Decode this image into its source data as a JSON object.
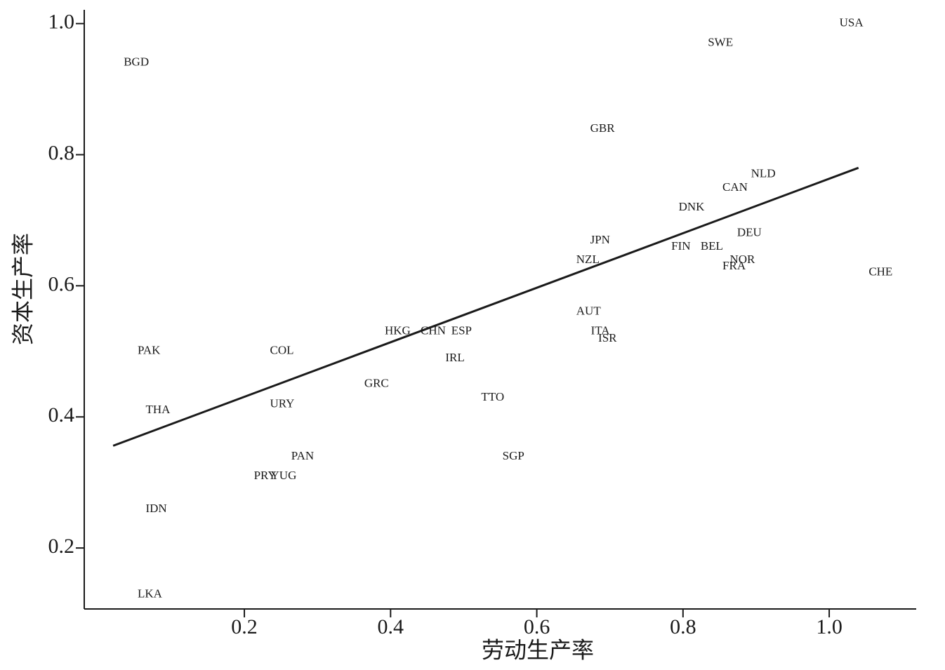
{
  "chart_data": {
    "type": "scatter",
    "x_label": "劳动生产率",
    "y_label": "资本生产率",
    "labels": [
      "BGD",
      "USA",
      "SWE",
      "GBR",
      "NLD",
      "CAN",
      "DNK",
      "DEU",
      "JPN",
      "FIN",
      "BEL",
      "NOR",
      "NZL",
      "FRA",
      "CHE",
      "AUT",
      "ITA",
      "ISR",
      "HKG",
      "CHN",
      "ESP",
      "IRL",
      "PAK",
      "COL",
      "GRC",
      "TTO",
      "URY",
      "THA",
      "PAN",
      "SGP",
      "PRY",
      "YUG",
      "IDN",
      "LKA"
    ],
    "x": [
      0.035,
      1.014,
      0.834,
      0.673,
      0.893,
      0.854,
      0.794,
      0.874,
      0.673,
      0.784,
      0.824,
      0.864,
      0.654,
      0.854,
      1.054,
      0.654,
      0.674,
      0.684,
      0.392,
      0.441,
      0.483,
      0.475,
      0.054,
      0.235,
      0.364,
      0.524,
      0.235,
      0.065,
      0.264,
      0.553,
      0.213,
      0.236,
      0.065,
      0.054
    ],
    "y": [
      0.94,
      1.0,
      0.97,
      0.839,
      0.77,
      0.749,
      0.719,
      0.68,
      0.669,
      0.659,
      0.659,
      0.639,
      0.639,
      0.629,
      0.62,
      0.56,
      0.53,
      0.519,
      0.53,
      0.53,
      0.53,
      0.489,
      0.5,
      0.5,
      0.45,
      0.429,
      0.419,
      0.41,
      0.339,
      0.339,
      0.309,
      0.309,
      0.259,
      0.129
    ],
    "fit": {
      "x": [
        0.0205,
        1.04
      ],
      "y": [
        0.356,
        0.78
      ]
    },
    "color": "#1a1a1a",
    "xlim": [
      -0.019,
      1.119
    ],
    "ylim": [
      0.107,
      1.021
    ],
    "xticks": [
      0.2,
      0.4,
      0.6,
      0.8,
      {
        "value": 1,
        "label": "1.0"
      }
    ],
    "yticks": [
      0.2,
      0.4,
      0.6,
      0.8,
      {
        "value": 1,
        "label": "1.0"
      }
    ]
  }
}
